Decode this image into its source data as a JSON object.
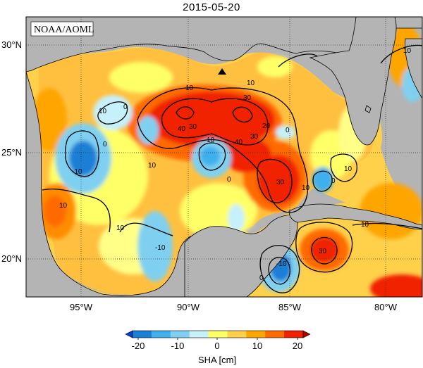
{
  "title": "2015-05-20",
  "credit": "NOAA/AOML",
  "map": {
    "lat_ticks": [
      "30°N",
      "25°N",
      "20°N"
    ],
    "lon_ticks": [
      "95°W",
      "90°W",
      "85°W",
      "80°W"
    ],
    "contour_labels": [
      "10",
      "10",
      "10",
      "0",
      "0",
      "-10",
      "10",
      "30",
      "30",
      "40",
      "40",
      "20",
      "10",
      "0",
      "10",
      "-10",
      "30",
      "10",
      "0",
      "10",
      "10",
      "30",
      "0",
      "-10",
      "10",
      "30",
      "10",
      "0"
    ],
    "colors": {
      "land": "#b4b4b4",
      "coast": "#000000",
      "neg_strong": "#1a7fd6",
      "neg": "#7fd0f0",
      "neg_light": "#c6f0fa",
      "zero_light": "#ffffc8",
      "zero": "#ffff66",
      "pos_light": "#ffd04a",
      "pos": "#ffa500",
      "pos_strong": "#ff6a00",
      "pos_max": "#e60000"
    }
  },
  "colorbar": {
    "ticks": [
      "-20",
      "-10",
      "0",
      "10",
      "20"
    ],
    "label": "SHA [cm]",
    "colors": [
      "#0044cc",
      "#1a7fd6",
      "#3fb0ec",
      "#7fd0f0",
      "#c6f0fa",
      "#ffff66",
      "#ffd04a",
      "#ffa500",
      "#ff6a00",
      "#f02000",
      "#b00000"
    ]
  }
}
